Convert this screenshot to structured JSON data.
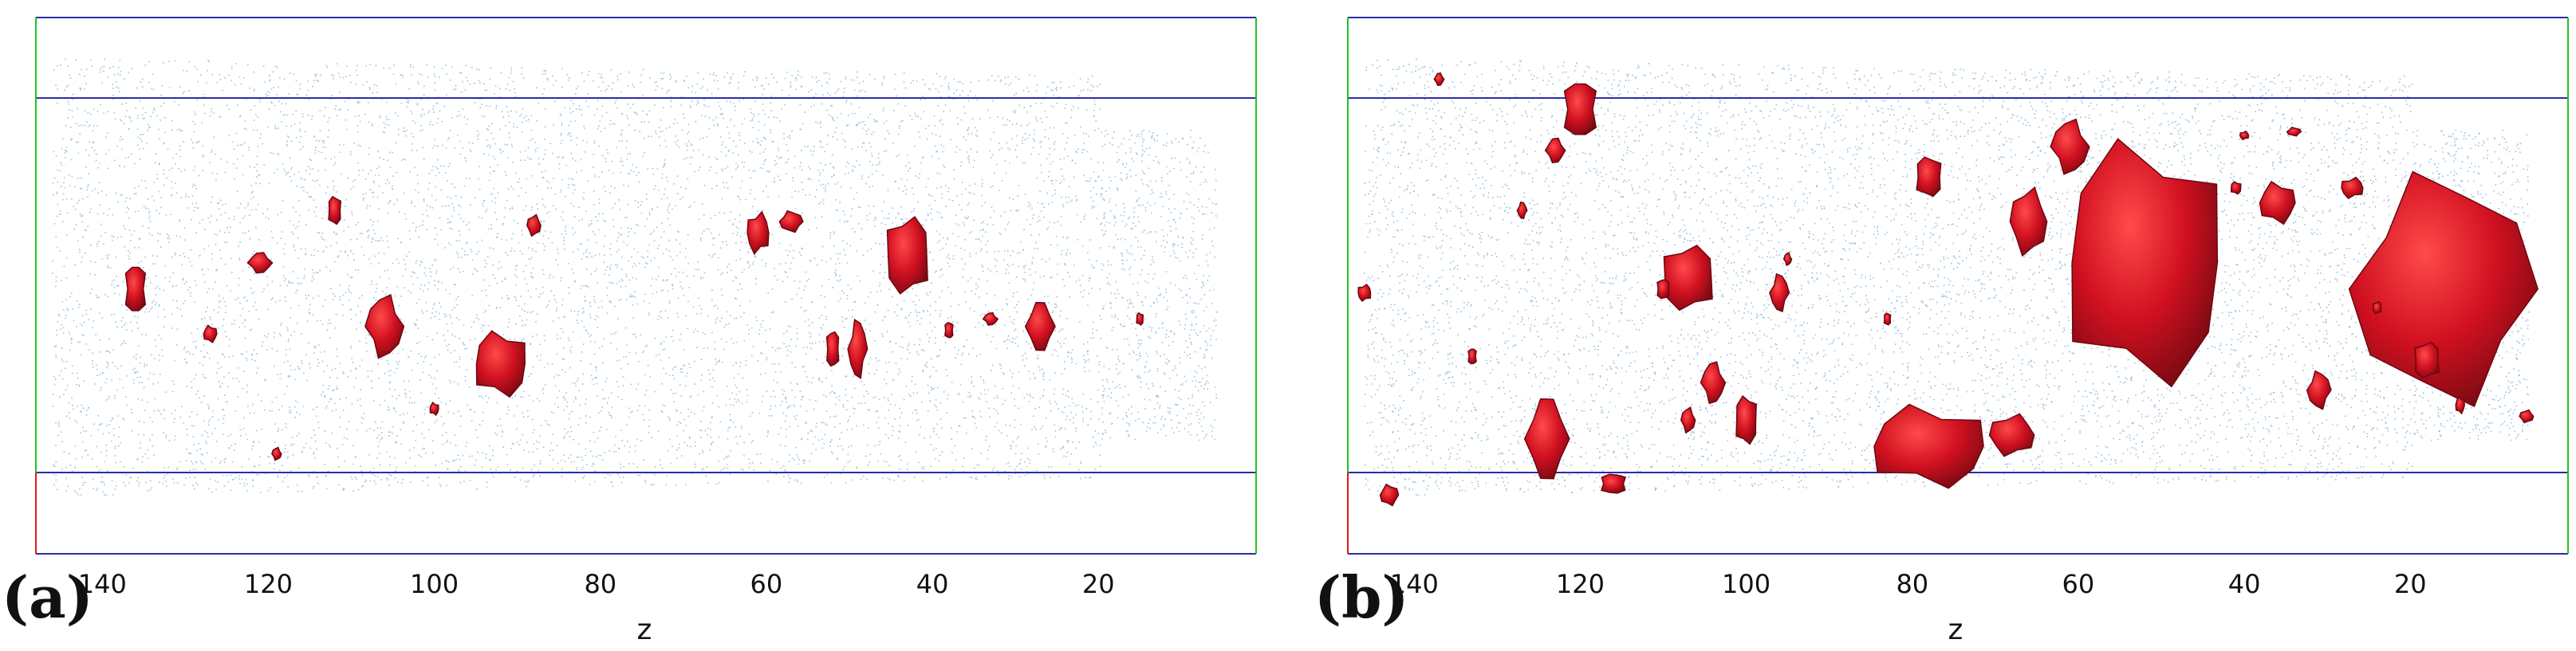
{
  "chart_data": [
    {
      "type": "scatter",
      "panel_label": "(a)",
      "xlabel": "z",
      "x_ticks": [
        140,
        120,
        100,
        80,
        60,
        40,
        20
      ],
      "xlim": [
        148,
        1
      ],
      "x_reversed": true,
      "colors": {
        "points": "#4a8fc2",
        "structures": "#d01020",
        "box_blue": "#2c2ca6",
        "box_green": "#22c322",
        "box_red": "#e01818"
      },
      "structures": [
        {
          "z": 136,
          "y": 0.49,
          "w": 2.5,
          "h": 0.12
        },
        {
          "z": 121,
          "y": 0.56,
          "w": 2.5,
          "h": 0.05
        },
        {
          "z": 112,
          "y": 0.7,
          "w": 1.5,
          "h": 0.07
        },
        {
          "z": 106,
          "y": 0.39,
          "w": 4.0,
          "h": 0.15
        },
        {
          "z": 92,
          "y": 0.29,
          "w": 6.0,
          "h": 0.16
        },
        {
          "z": 88,
          "y": 0.66,
          "w": 1.5,
          "h": 0.05
        },
        {
          "z": 127,
          "y": 0.37,
          "w": 1.5,
          "h": 0.04
        },
        {
          "z": 61,
          "y": 0.64,
          "w": 2.5,
          "h": 0.1
        },
        {
          "z": 57,
          "y": 0.67,
          "w": 2.5,
          "h": 0.05
        },
        {
          "z": 43,
          "y": 0.58,
          "w": 5.0,
          "h": 0.19
        },
        {
          "z": 49,
          "y": 0.33,
          "w": 2.0,
          "h": 0.14
        },
        {
          "z": 52,
          "y": 0.33,
          "w": 1.5,
          "h": 0.09
        },
        {
          "z": 27,
          "y": 0.39,
          "w": 3.0,
          "h": 0.12
        },
        {
          "z": 38,
          "y": 0.38,
          "w": 1.0,
          "h": 0.04
        },
        {
          "z": 33,
          "y": 0.41,
          "w": 1.5,
          "h": 0.03
        },
        {
          "z": 15,
          "y": 0.41,
          "w": 0.8,
          "h": 0.03
        },
        {
          "z": 119,
          "y": 0.05,
          "w": 1.0,
          "h": 0.03
        },
        {
          "z": 100,
          "y": 0.17,
          "w": 1.0,
          "h": 0.03
        }
      ]
    },
    {
      "type": "scatter",
      "panel_label": "(b)",
      "xlabel": "z",
      "x_ticks": [
        140,
        120,
        100,
        80,
        60,
        40,
        20
      ],
      "xlim": [
        148,
        1
      ],
      "x_reversed": true,
      "colors": {
        "points": "#4a8fc2",
        "structures": "#d01020",
        "box_blue": "#2c2ca6",
        "box_green": "#22c322",
        "box_red": "#e01818"
      },
      "structures": [
        {
          "z": 120,
          "y": 0.97,
          "w": 4.0,
          "h": 0.14
        },
        {
          "z": 123,
          "y": 0.86,
          "w": 2.0,
          "h": 0.06
        },
        {
          "z": 78,
          "y": 0.79,
          "w": 3.0,
          "h": 0.1
        },
        {
          "z": 61,
          "y": 0.87,
          "w": 4.0,
          "h": 0.13
        },
        {
          "z": 52,
          "y": 0.56,
          "w": 18.0,
          "h": 0.6
        },
        {
          "z": 66,
          "y": 0.67,
          "w": 4.0,
          "h": 0.16
        },
        {
          "z": 36,
          "y": 0.72,
          "w": 4.0,
          "h": 0.1
        },
        {
          "z": 27,
          "y": 0.76,
          "w": 2.5,
          "h": 0.05
        },
        {
          "z": 16,
          "y": 0.49,
          "w": 20.0,
          "h": 0.55
        },
        {
          "z": 107,
          "y": 0.52,
          "w": 6.0,
          "h": 0.16
        },
        {
          "z": 96,
          "y": 0.48,
          "w": 2.0,
          "h": 0.09
        },
        {
          "z": 110,
          "y": 0.49,
          "w": 1.5,
          "h": 0.05
        },
        {
          "z": 124,
          "y": 0.09,
          "w": 4.5,
          "h": 0.2
        },
        {
          "z": 116,
          "y": -0.03,
          "w": 3.0,
          "h": 0.05
        },
        {
          "z": 104,
          "y": 0.24,
          "w": 2.5,
          "h": 0.1
        },
        {
          "z": 100,
          "y": 0.14,
          "w": 2.5,
          "h": 0.12
        },
        {
          "z": 107,
          "y": 0.14,
          "w": 1.5,
          "h": 0.06
        },
        {
          "z": 78,
          "y": 0.07,
          "w": 13.0,
          "h": 0.2
        },
        {
          "z": 68,
          "y": 0.1,
          "w": 5.0,
          "h": 0.1
        },
        {
          "z": 143,
          "y": -0.06,
          "w": 2.0,
          "h": 0.05
        },
        {
          "z": 146,
          "y": 0.48,
          "w": 1.5,
          "h": 0.04
        },
        {
          "z": 31,
          "y": 0.22,
          "w": 2.5,
          "h": 0.09
        },
        {
          "z": 18,
          "y": 0.3,
          "w": 3.0,
          "h": 0.09
        },
        {
          "z": 127,
          "y": 0.7,
          "w": 1.0,
          "h": 0.04
        },
        {
          "z": 133,
          "y": 0.31,
          "w": 1.0,
          "h": 0.04
        },
        {
          "z": 137,
          "y": 1.05,
          "w": 1.0,
          "h": 0.03
        },
        {
          "z": 83,
          "y": 0.41,
          "w": 0.8,
          "h": 0.03
        },
        {
          "z": 95,
          "y": 0.57,
          "w": 0.8,
          "h": 0.03
        },
        {
          "z": 41,
          "y": 0.76,
          "w": 1.2,
          "h": 0.03
        },
        {
          "z": 6,
          "y": 0.15,
          "w": 1.5,
          "h": 0.03
        },
        {
          "z": 14,
          "y": 0.18,
          "w": 1.0,
          "h": 0.04
        },
        {
          "z": 40,
          "y": 0.9,
          "w": 1.0,
          "h": 0.02
        },
        {
          "z": 34,
          "y": 0.91,
          "w": 1.5,
          "h": 0.02
        },
        {
          "z": 24,
          "y": 0.44,
          "w": 1.0,
          "h": 0.03
        }
      ]
    }
  ]
}
